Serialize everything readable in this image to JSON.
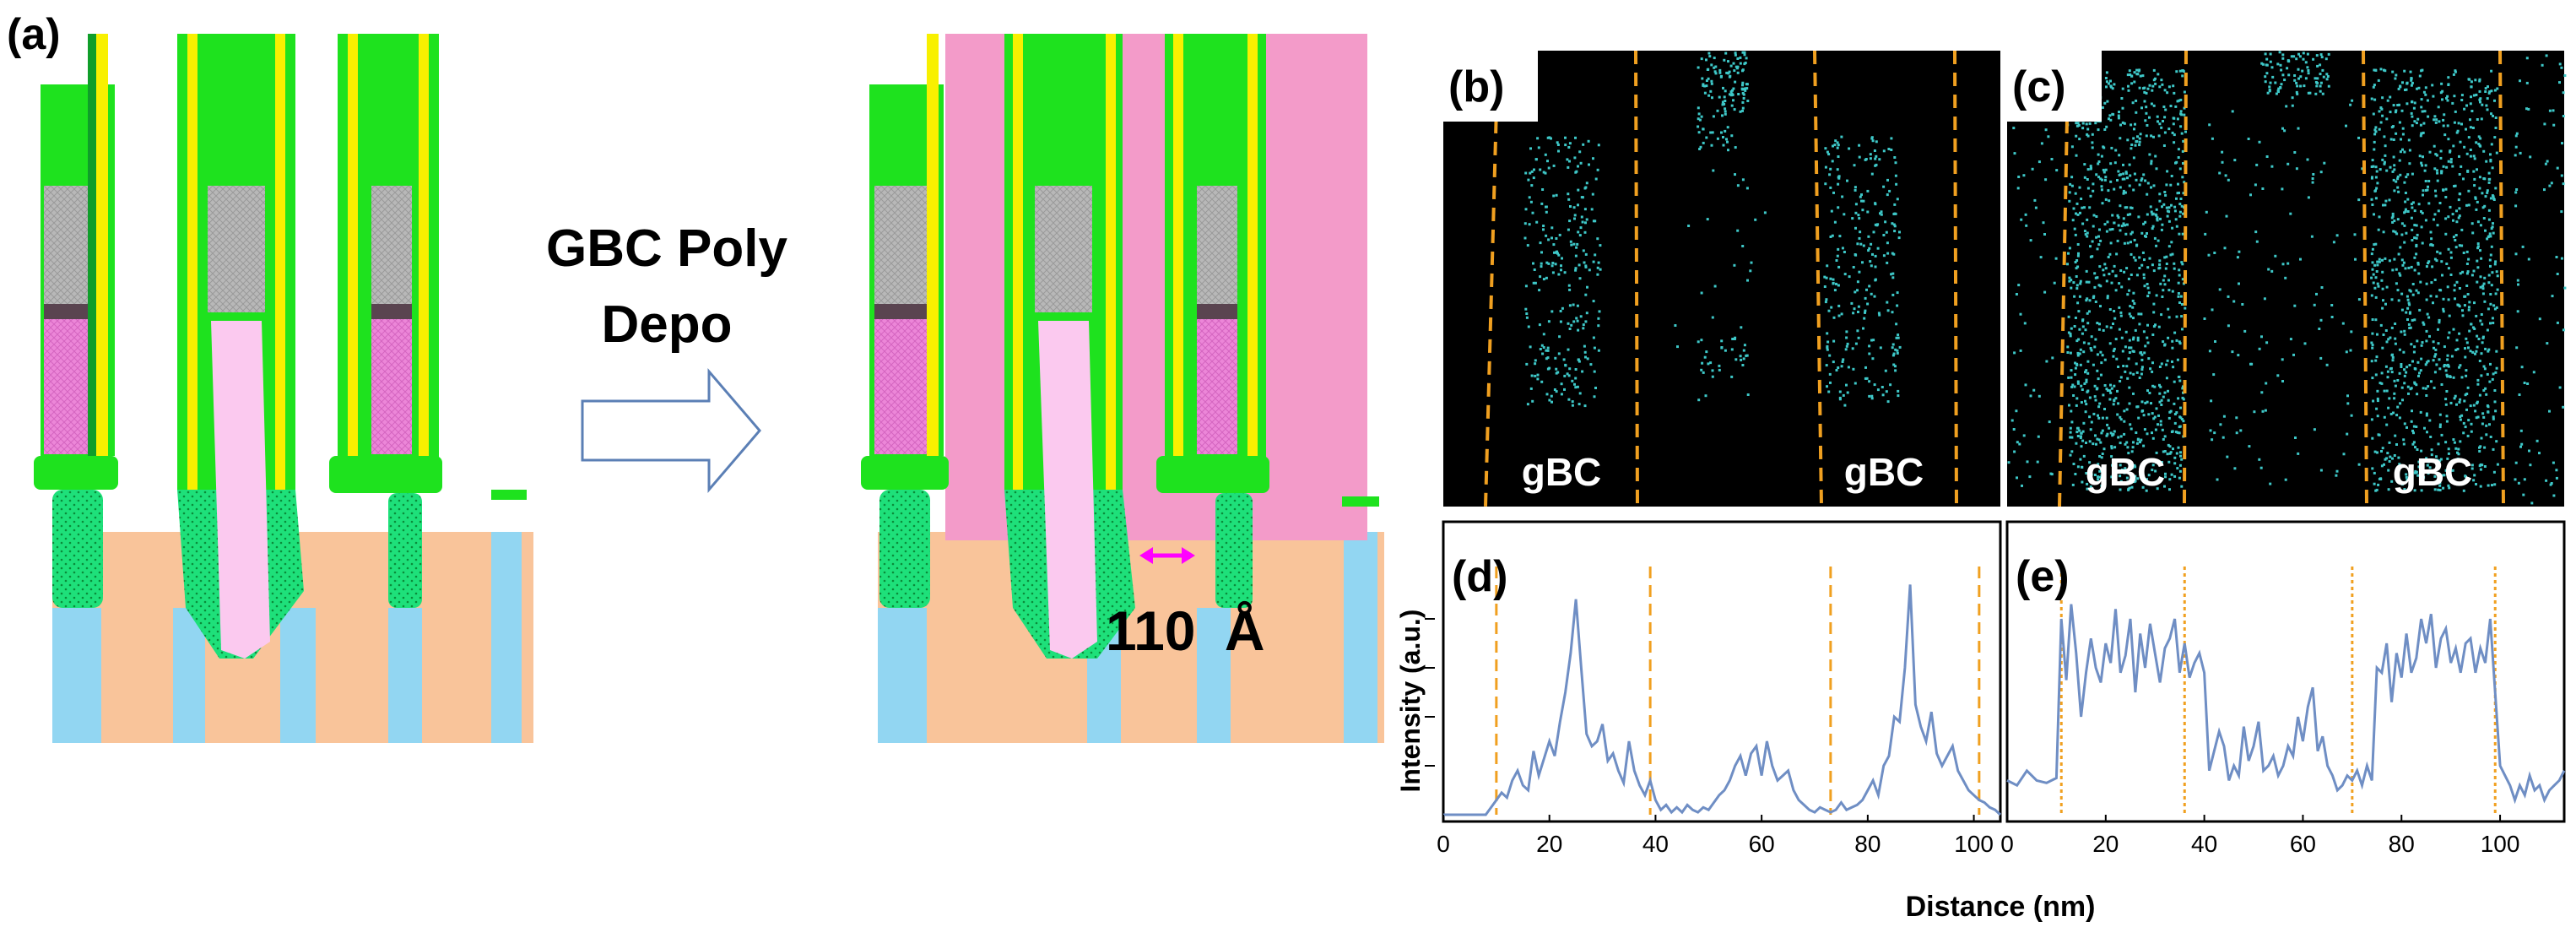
{
  "panels": {
    "a": "(a)",
    "b": "(b)",
    "c": "(c)",
    "d": "(d)",
    "e": "(e)"
  },
  "process_arrow": {
    "line1": "GBC Poly",
    "line2": "Depo"
  },
  "dimension": {
    "value": "110",
    "unit": "Å"
  },
  "eds_maps": {
    "label_left": "gBC",
    "label_right": "gBC"
  },
  "colors": {
    "green": "#1ee21e",
    "yellow": "#f8f000",
    "gray": "#b8b8b8",
    "dark_band": "#5a4450",
    "pink_fill": "#ec86d8",
    "light_pink": "#fbc9ef",
    "tan": "#f9c49a",
    "cyan": "#92d6f2",
    "pink_fill2": "#f39bc9",
    "arrow_magenta": "#ff00ff",
    "dash_orange": "#f0a020",
    "dot_cyan": "#3ec8c8",
    "line_blue": "#6f8ec4"
  },
  "chart_data": [
    {
      "type": "line",
      "panel": "(d)",
      "title": "",
      "xlabel": "Distance (nm)",
      "ylabel": "Intensity (a.u.)",
      "xlim": [
        0,
        105
      ],
      "ylim": [
        0,
        100
      ],
      "x_ticks": [
        0,
        20,
        40,
        60,
        80,
        100
      ],
      "boundaries": [
        10,
        39,
        73,
        101
      ],
      "series": [
        {
          "name": "profile",
          "x": [
            0,
            2,
            4,
            6,
            8,
            10,
            11,
            12,
            13,
            14,
            15,
            16,
            17,
            18,
            19,
            20,
            21,
            22,
            23,
            24,
            25,
            26,
            27,
            28,
            29,
            30,
            31,
            32,
            33,
            34,
            35,
            36,
            37,
            38,
            39,
            40,
            41,
            42,
            43,
            44,
            45,
            46,
            47,
            48,
            49,
            50,
            51,
            52,
            53,
            54,
            55,
            56,
            57,
            58,
            59,
            60,
            61,
            62,
            63,
            64,
            65,
            66,
            67,
            68,
            69,
            70,
            71,
            72,
            73,
            74,
            75,
            76,
            77,
            78,
            79,
            80,
            81,
            82,
            83,
            84,
            85,
            86,
            87,
            88,
            89,
            90,
            91,
            92,
            93,
            94,
            95,
            96,
            97,
            98,
            99,
            100,
            101,
            102,
            103,
            104,
            105
          ],
          "y": [
            0,
            0,
            0,
            0,
            0,
            6,
            9,
            7,
            14,
            18,
            12,
            10,
            26,
            16,
            23,
            30,
            24,
            38,
            50,
            66,
            88,
            60,
            33,
            28,
            30,
            37,
            22,
            25,
            18,
            13,
            30,
            18,
            12,
            8,
            14,
            6,
            2,
            4,
            1,
            3,
            1,
            4,
            2,
            1,
            3,
            2,
            5,
            8,
            10,
            14,
            20,
            24,
            16,
            25,
            28,
            16,
            30,
            20,
            14,
            16,
            18,
            10,
            6,
            4,
            2,
            1,
            3,
            2,
            1,
            2,
            5,
            2,
            3,
            4,
            6,
            10,
            14,
            8,
            20,
            24,
            40,
            38,
            60,
            94,
            45,
            36,
            30,
            42,
            25,
            20,
            24,
            28,
            18,
            14,
            10,
            8,
            6,
            5,
            3,
            2,
            0
          ]
        }
      ]
    },
    {
      "type": "line",
      "panel": "(e)",
      "title": "",
      "xlabel": "Distance (nm)",
      "ylabel": "",
      "xlim": [
        0,
        113
      ],
      "ylim": [
        0,
        100
      ],
      "x_ticks": [
        0,
        20,
        40,
        60,
        80,
        100
      ],
      "boundaries": [
        11,
        36,
        70,
        99
      ],
      "series": [
        {
          "name": "profile",
          "x": [
            0,
            2,
            4,
            6,
            8,
            10,
            11,
            12,
            13,
            14,
            15,
            16,
            17,
            18,
            19,
            20,
            21,
            22,
            23,
            24,
            25,
            26,
            27,
            28,
            29,
            30,
            31,
            32,
            33,
            34,
            35,
            36,
            37,
            38,
            39,
            40,
            41,
            42,
            43,
            44,
            45,
            46,
            47,
            48,
            49,
            50,
            51,
            52,
            53,
            54,
            55,
            56,
            57,
            58,
            59,
            60,
            61,
            62,
            63,
            64,
            65,
            66,
            67,
            68,
            69,
            70,
            71,
            72,
            73,
            74,
            75,
            76,
            77,
            78,
            79,
            80,
            81,
            82,
            83,
            84,
            85,
            86,
            87,
            88,
            89,
            90,
            91,
            92,
            93,
            94,
            95,
            96,
            97,
            98,
            99,
            100,
            101,
            102,
            103,
            104,
            105,
            106,
            107,
            108,
            109,
            110,
            111,
            112,
            113
          ],
          "y": [
            14,
            12,
            18,
            14,
            13,
            15,
            80,
            55,
            86,
            66,
            40,
            58,
            72,
            60,
            54,
            70,
            62,
            84,
            58,
            65,
            80,
            50,
            74,
            60,
            78,
            66,
            54,
            68,
            72,
            80,
            58,
            70,
            56,
            62,
            66,
            58,
            18,
            26,
            34,
            28,
            14,
            20,
            16,
            36,
            22,
            28,
            38,
            18,
            20,
            24,
            16,
            20,
            28,
            24,
            40,
            30,
            44,
            52,
            26,
            32,
            20,
            16,
            10,
            12,
            16,
            14,
            18,
            12,
            20,
            14,
            60,
            58,
            70,
            46,
            66,
            56,
            74,
            58,
            64,
            80,
            70,
            82,
            60,
            72,
            76,
            62,
            68,
            58,
            70,
            72,
            58,
            68,
            62,
            80,
            50,
            20,
            16,
            12,
            6,
            12,
            8,
            16,
            10,
            12,
            6,
            10,
            12,
            14,
            18
          ]
        }
      ]
    }
  ]
}
